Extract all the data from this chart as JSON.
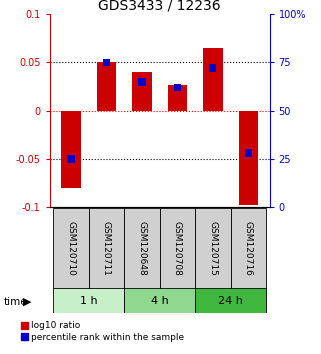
{
  "title": "GDS3433 / 12236",
  "samples": [
    "GSM120710",
    "GSM120711",
    "GSM120648",
    "GSM120708",
    "GSM120715",
    "GSM120716"
  ],
  "time_groups": [
    {
      "label": "1 h",
      "indices": [
        0,
        1
      ],
      "color": "#c8f0c8"
    },
    {
      "label": "4 h",
      "indices": [
        2,
        3
      ],
      "color": "#90d890"
    },
    {
      "label": "24 h",
      "indices": [
        4,
        5
      ],
      "color": "#40b840"
    }
  ],
  "log10_ratio": [
    -0.08,
    0.05,
    0.04,
    0.027,
    0.065,
    -0.098
  ],
  "percentile_rank": [
    25,
    75,
    65,
    62,
    72,
    28
  ],
  "ylim_left": [
    -0.1,
    0.1
  ],
  "ylim_right": [
    0,
    100
  ],
  "yticks_left": [
    -0.1,
    -0.05,
    0,
    0.05,
    0.1
  ],
  "yticks_right": [
    0,
    25,
    50,
    75,
    100
  ],
  "ytick_labels_left": [
    "-0.1",
    "-0.05",
    "0",
    "0.05",
    "0.1"
  ],
  "ytick_labels_right": [
    "0",
    "25",
    "50",
    "75",
    "100%"
  ],
  "hlines_black_dotted": [
    0.05,
    -0.05
  ],
  "hline_red_dotted": 0,
  "bar_color_red": "#cc0000",
  "bar_color_blue": "#0000cc",
  "bar_width": 0.55,
  "blue_bar_width": 0.2,
  "blue_bar_height": 0.008,
  "legend_red": "log10 ratio",
  "legend_blue": "percentile rank within the sample",
  "left_tick_color": "#cc0000",
  "right_tick_color": "#0000cc",
  "sample_box_color": "#d0d0d0"
}
